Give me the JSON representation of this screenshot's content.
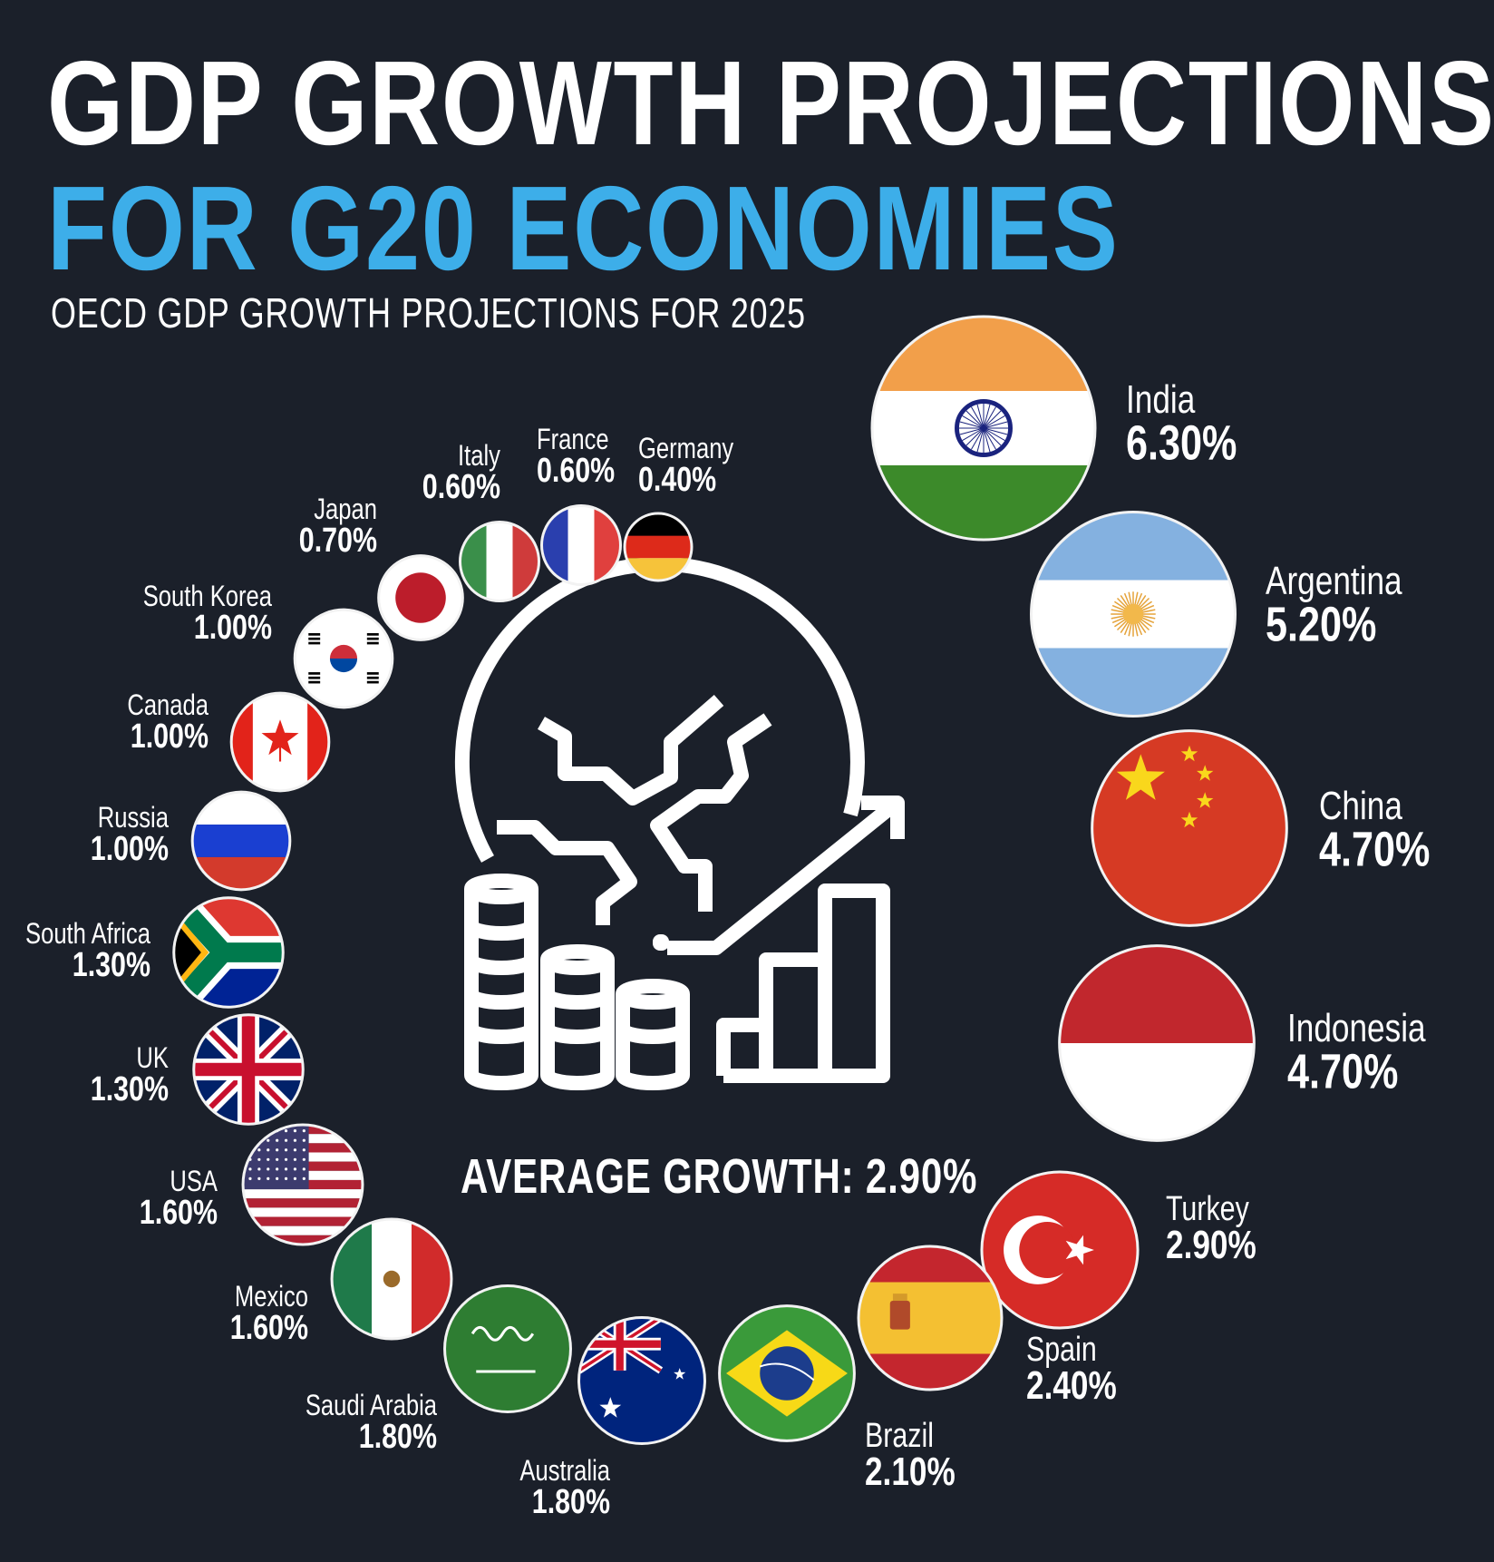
{
  "header": {
    "title_line1": "GDP GROWTH PROJECTIONS",
    "title_line2": "FOR G20 ECONOMIES",
    "subtitle": "OECD GDP GROWTH PROJECTIONS FOR 2025"
  },
  "colors": {
    "background": "#1b202a",
    "title_accent": "#3daee9",
    "text": "#ffffff"
  },
  "center": {
    "icon": "globe-coins-growth-chart-icon",
    "average_label": "AVERAGE GROWTH: 2.90%"
  },
  "chart_data": {
    "type": "bubble",
    "title": "GDP GROWTH PROJECTIONS FOR G20 ECONOMIES",
    "subtitle": "OECD GDP GROWTH PROJECTIONS FOR 2025",
    "unit": "%",
    "encoding": "circle size proportional to projected growth; each circle shows the country flag",
    "average": 2.9,
    "average_label": "AVERAGE GROWTH: 2.90%",
    "series": [
      {
        "country": "India",
        "value": 6.3,
        "label": "6.30%",
        "flag": "india"
      },
      {
        "country": "Argentina",
        "value": 5.2,
        "label": "5.20%",
        "flag": "argentina"
      },
      {
        "country": "China",
        "value": 4.7,
        "label": "4.70%",
        "flag": "china"
      },
      {
        "country": "Indonesia",
        "value": 4.7,
        "label": "4.70%",
        "flag": "indonesia"
      },
      {
        "country": "Turkey",
        "value": 2.9,
        "label": "2.90%",
        "flag": "turkey"
      },
      {
        "country": "Spain",
        "value": 2.4,
        "label": "2.40%",
        "flag": "spain"
      },
      {
        "country": "Brazil",
        "value": 2.1,
        "label": "2.10%",
        "flag": "brazil"
      },
      {
        "country": "Australia",
        "value": 1.8,
        "label": "1.80%",
        "flag": "australia"
      },
      {
        "country": "Saudi Arabia",
        "value": 1.8,
        "label": "1.80%",
        "flag": "saudi-arabia"
      },
      {
        "country": "Mexico",
        "value": 1.6,
        "label": "1.60%",
        "flag": "mexico"
      },
      {
        "country": "USA",
        "value": 1.6,
        "label": "1.60%",
        "flag": "usa"
      },
      {
        "country": "UK",
        "value": 1.3,
        "label": "1.30%",
        "flag": "uk"
      },
      {
        "country": "South Africa",
        "value": 1.3,
        "label": "1.30%",
        "flag": "south-africa"
      },
      {
        "country": "Russia",
        "value": 1.0,
        "label": "1.00%",
        "flag": "russia"
      },
      {
        "country": "Canada",
        "value": 1.0,
        "label": "1.00%",
        "flag": "canada"
      },
      {
        "country": "South Korea",
        "value": 1.0,
        "label": "1.00%",
        "flag": "south-korea"
      },
      {
        "country": "Japan",
        "value": 0.7,
        "label": "0.70%",
        "flag": "japan"
      },
      {
        "country": "Italy",
        "value": 0.6,
        "label": "0.60%",
        "flag": "italy"
      },
      {
        "country": "France",
        "value": 0.6,
        "label": "0.60%",
        "flag": "france"
      },
      {
        "country": "Germany",
        "value": 0.4,
        "label": "0.40%",
        "flag": "germany"
      }
    ]
  }
}
